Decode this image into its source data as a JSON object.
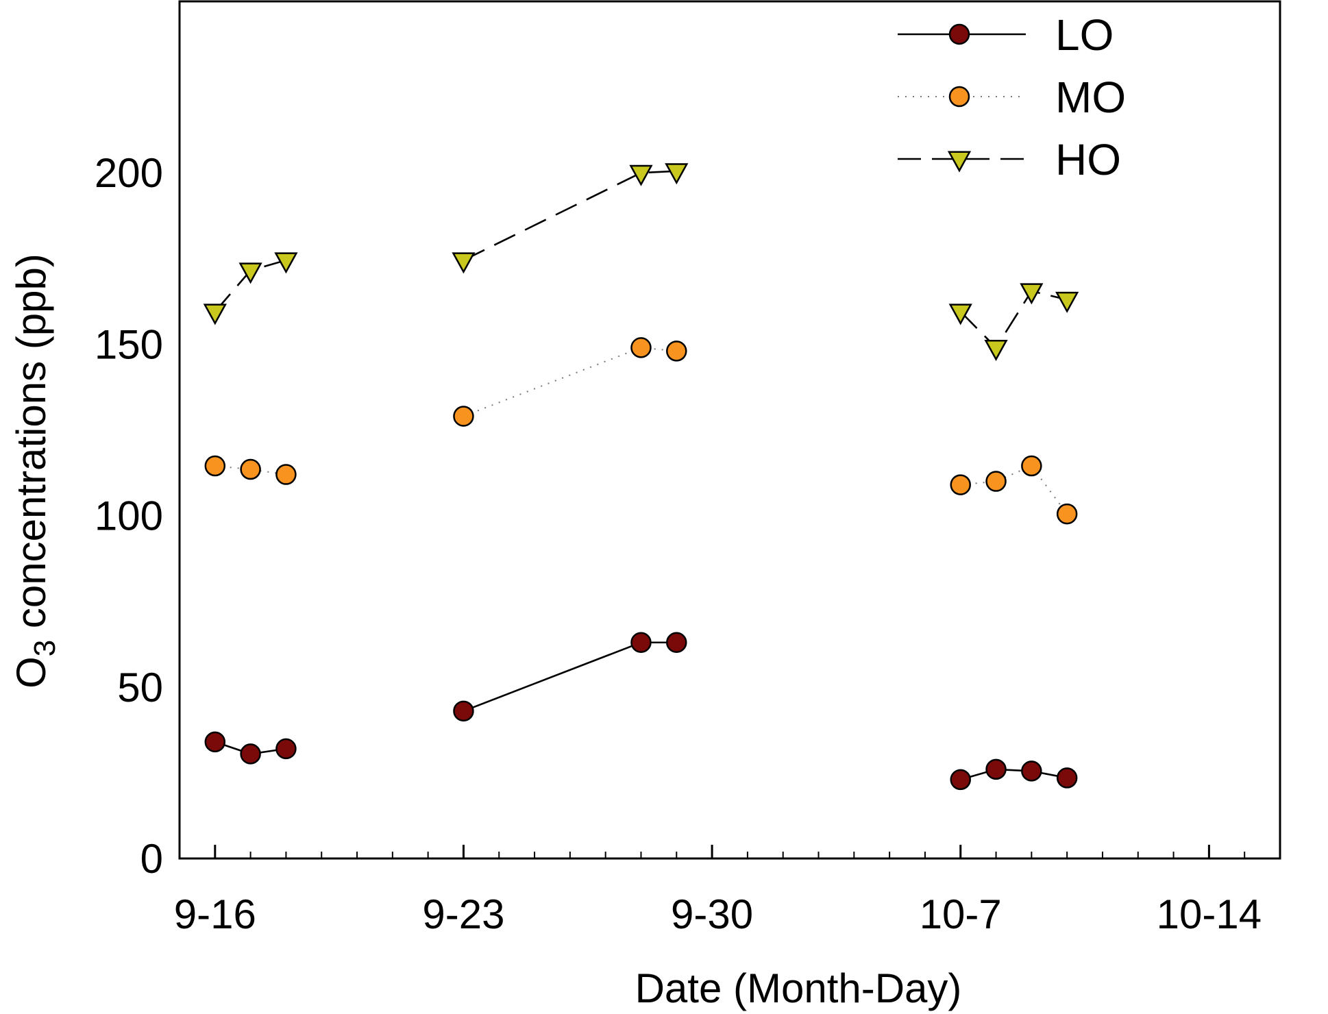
{
  "chart_data": {
    "type": "line",
    "title": "",
    "xlabel": "Date (Month-Day)",
    "ylabel_main": "O",
    "ylabel_sub": "3",
    "ylabel_rest": " concentrations (ppb)",
    "xticks": [
      {
        "value": 0,
        "label": "9-16"
      },
      {
        "value": 7,
        "label": "9-23"
      },
      {
        "value": 14,
        "label": "9-30"
      },
      {
        "value": 21,
        "label": "10-7"
      },
      {
        "value": 28,
        "label": "10-14"
      }
    ],
    "yticks": [
      0,
      50,
      100,
      150,
      200
    ],
    "xlim": [
      -1,
      30
    ],
    "ylim": [
      0,
      250
    ],
    "legend_position": "top-right",
    "series": [
      {
        "name": "LO",
        "marker": "circle",
        "color": "#7a0a0a",
        "line": "solid",
        "segments": [
          {
            "x": [
              0,
              1,
              2
            ],
            "y": [
              34,
              30.5,
              32
            ]
          },
          {
            "x": [
              7,
              12,
              13
            ],
            "y": [
              43,
              63,
              63
            ]
          },
          {
            "x": [
              21,
              22,
              23,
              24
            ],
            "y": [
              23,
              26,
              25.5,
              23.5
            ]
          }
        ]
      },
      {
        "name": "MO",
        "marker": "circle",
        "color": "#f7931e",
        "line": "dotted",
        "segments": [
          {
            "x": [
              0,
              1,
              2
            ],
            "y": [
              114.5,
              113.5,
              112
            ]
          },
          {
            "x": [
              7,
              12,
              13
            ],
            "y": [
              129,
              149,
              148
            ]
          },
          {
            "x": [
              21,
              22,
              23,
              24
            ],
            "y": [
              109,
              110,
              114.5,
              100.5
            ]
          }
        ]
      },
      {
        "name": "HO",
        "marker": "triangle-down",
        "color": "#c8c81e",
        "line": "dashed",
        "segments": [
          {
            "x": [
              0,
              1,
              2
            ],
            "y": [
              159.5,
              171.5,
              174.5
            ]
          },
          {
            "x": [
              7,
              12,
              13
            ],
            "y": [
              174.5,
              200,
              200.5
            ]
          },
          {
            "x": [
              21,
              22,
              23,
              24
            ],
            "y": [
              159.5,
              149,
              165.5,
              163
            ]
          }
        ]
      }
    ]
  }
}
